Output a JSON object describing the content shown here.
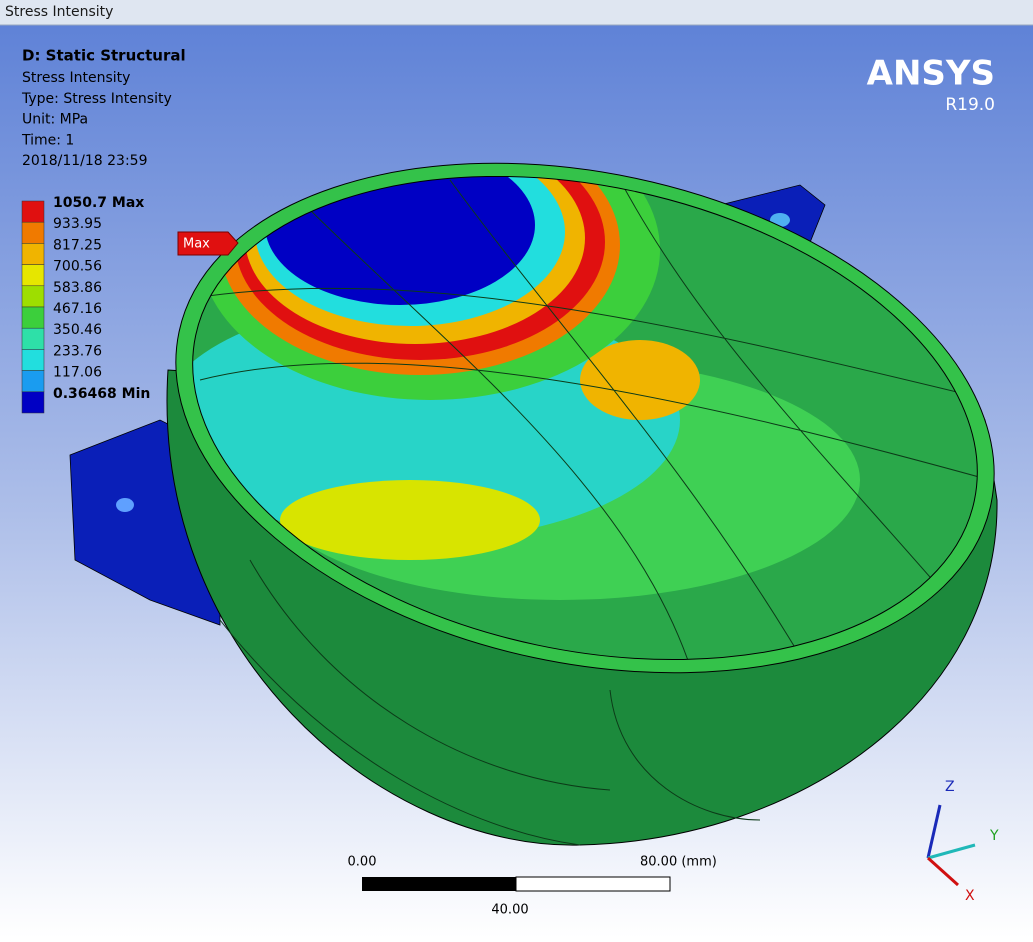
{
  "window": {
    "title": "Stress Intensity"
  },
  "header": {
    "title": "D: Static Structural",
    "lines": [
      "Stress Intensity",
      "Type: Stress Intensity",
      "Unit: MPa",
      "Time: 1",
      "2018/11/18 23:59"
    ]
  },
  "legend": {
    "entries": [
      {
        "label": "1050.7 Max",
        "color": "#e01010"
      },
      {
        "label": "933.95",
        "color": "#f07a00"
      },
      {
        "label": "817.25",
        "color": "#f0b400"
      },
      {
        "label": "700.56",
        "color": "#e6e600"
      },
      {
        "label": "583.86",
        "color": "#9ede00"
      },
      {
        "label": "467.16",
        "color": "#3ccf3c"
      },
      {
        "label": "350.46",
        "color": "#2ee0a8"
      },
      {
        "label": "233.76",
        "color": "#22dede"
      },
      {
        "label": "117.06",
        "color": "#1a9cf0"
      },
      {
        "label": "0.36468 Min",
        "color": "#0000c4"
      }
    ]
  },
  "probe": {
    "label": "Max"
  },
  "brand": {
    "name": "ANSYS",
    "version": "R19.0"
  },
  "scale_bar": {
    "start": "0.00",
    "end": "80.00 (mm)",
    "middle": "40.00"
  },
  "triad": {
    "z": "Z",
    "y": "Y",
    "x": "X"
  }
}
